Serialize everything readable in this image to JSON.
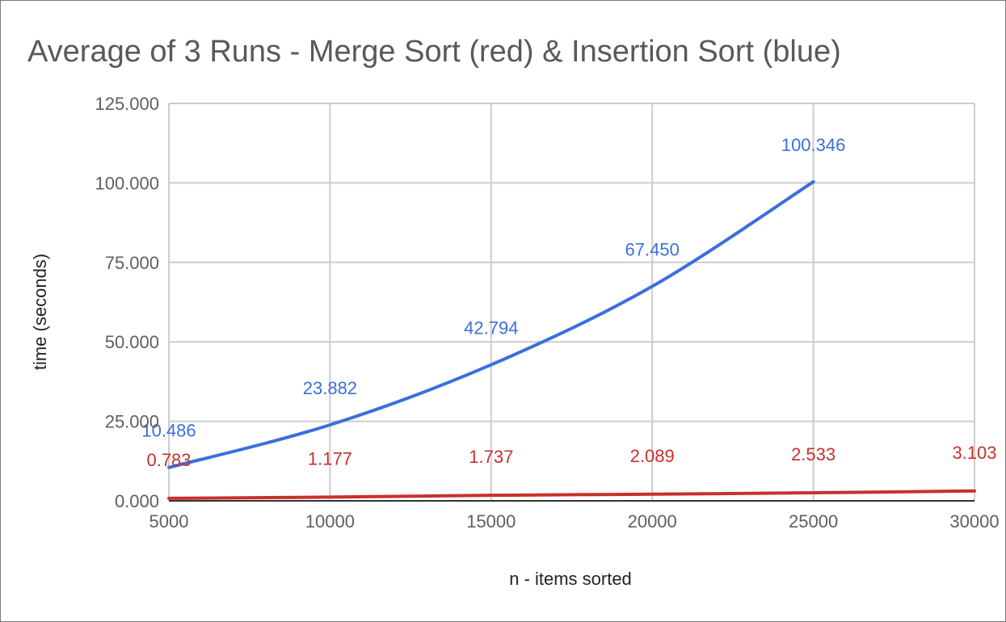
{
  "chart_data": {
    "type": "line",
    "title": "Average of 3 Runs - Merge Sort (red) & Insertion Sort (blue)",
    "xlabel": "n - items sorted",
    "ylabel": "time (seconds)",
    "x_ticks": [
      "5000",
      "10000",
      "15000",
      "20000",
      "25000",
      "30000"
    ],
    "y_ticks": [
      "0.000",
      "25.000",
      "50.000",
      "75.000",
      "100.000",
      "125.000"
    ],
    "xlim": [
      5000,
      30000
    ],
    "ylim": [
      0,
      125
    ],
    "grid": true,
    "series": [
      {
        "name": "Insertion Sort",
        "color": "#3b6fe0",
        "x": [
          5000,
          10000,
          15000,
          20000,
          25000
        ],
        "values": [
          10.486,
          23.882,
          42.794,
          67.45,
          100.346
        ],
        "labels": [
          "10.486",
          "23.882",
          "42.794",
          "67.450",
          "100.346"
        ]
      },
      {
        "name": "Merge Sort",
        "color": "#c9302c",
        "x": [
          5000,
          10000,
          15000,
          20000,
          25000,
          30000
        ],
        "values": [
          0.783,
          1.177,
          1.737,
          2.089,
          2.533,
          3.103
        ],
        "labels": [
          "0.783",
          "1.177",
          "1.737",
          "2.089",
          "2.533",
          "3.103"
        ]
      }
    ]
  }
}
